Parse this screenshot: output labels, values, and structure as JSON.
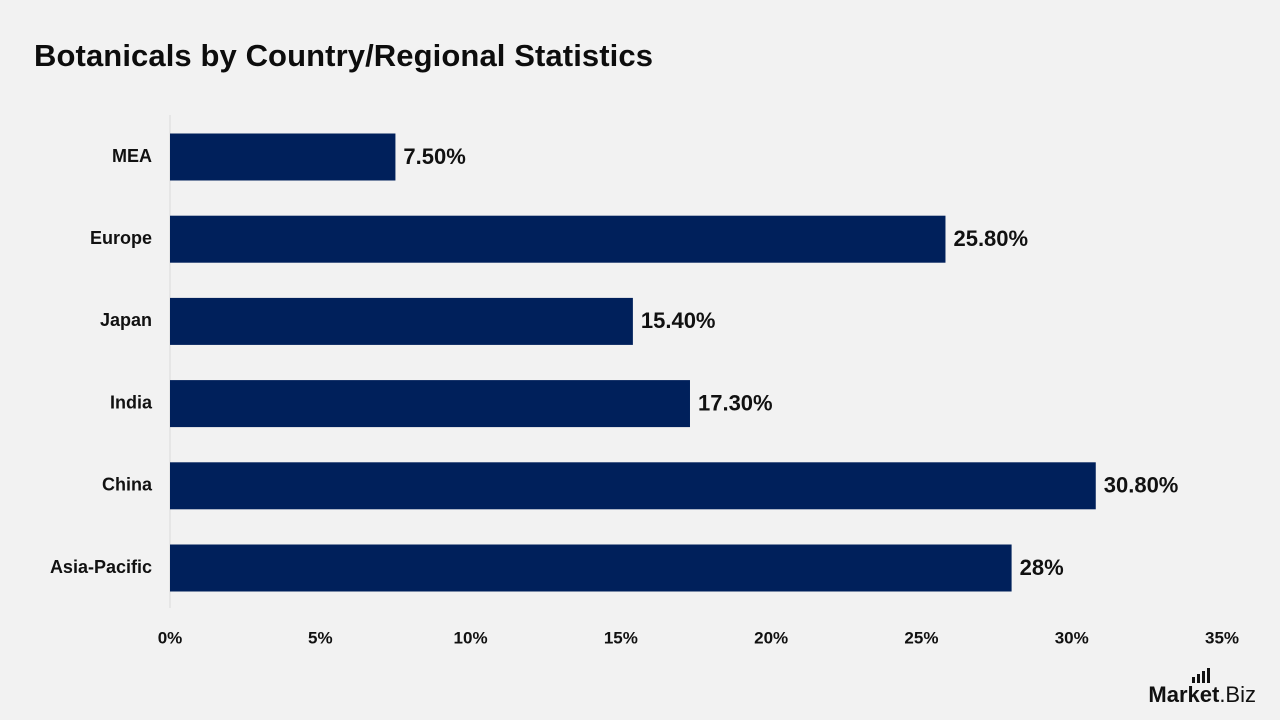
{
  "page": {
    "title": "Botanicals by Country/Regional Statistics"
  },
  "logo": {
    "text_bold": "Market",
    "text_light": ".Biz"
  },
  "colors": {
    "background": "#f2f2f2",
    "bar": "#00205b",
    "axis_line": "#d9d9d9",
    "text": "#111111"
  },
  "chart_data": {
    "type": "bar",
    "orientation": "horizontal",
    "title": "Botanicals by Country/Regional Statistics",
    "categories": [
      "MEA",
      "Europe",
      "Japan",
      "India",
      "China",
      "Asia-Pacific"
    ],
    "values": [
      7.5,
      25.8,
      15.4,
      17.3,
      30.8,
      28
    ],
    "value_labels": [
      "7.50%",
      "25.80%",
      "15.40%",
      "17.30%",
      "30.80%",
      "28%"
    ],
    "xlim": [
      0,
      35
    ],
    "x_ticks": [
      0,
      5,
      10,
      15,
      20,
      25,
      30,
      35
    ],
    "x_tick_labels": [
      "0%",
      "5%",
      "10%",
      "15%",
      "20%",
      "25%",
      "30%",
      "35%"
    ],
    "xlabel": "",
    "ylabel": "",
    "grid": false,
    "legend": "none"
  }
}
